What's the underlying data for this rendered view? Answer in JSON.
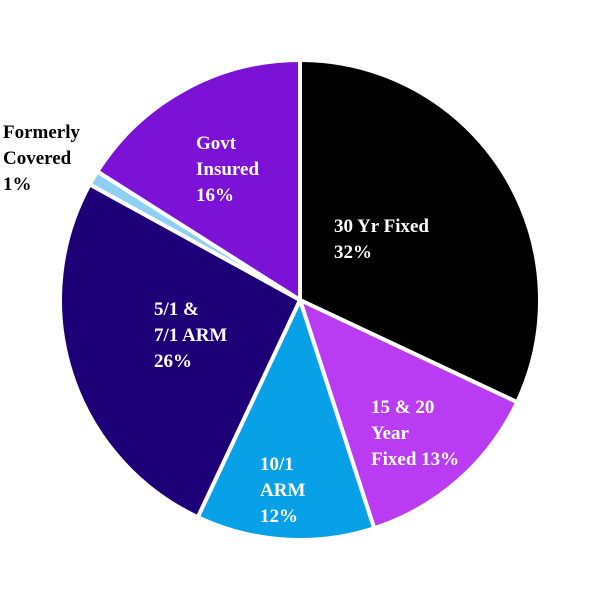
{
  "chart_data": {
    "type": "pie",
    "title": "",
    "slices": [
      {
        "id": "30yr-fixed",
        "label_lines": [
          "30 Yr Fixed",
          "32%"
        ],
        "value": 32,
        "color": "#000000",
        "text_color": "#ffffff"
      },
      {
        "id": "15-20-year-fixed",
        "label_lines": [
          "15 & 20",
          "Year",
          "Fixed 13%"
        ],
        "value": 13,
        "color": "#b93cf2",
        "text_color": "#ffffff"
      },
      {
        "id": "10-1-arm",
        "label_lines": [
          "10/1",
          "ARM",
          "12%"
        ],
        "value": 12,
        "color": "#08a0e6",
        "text_color": "#ffffff"
      },
      {
        "id": "5-1-7-1-arm",
        "label_lines": [
          "5/1 &",
          "7/1 ARM",
          "26%"
        ],
        "value": 26,
        "color": "#1d0078",
        "text_color": "#ffffff"
      },
      {
        "id": "formerly-covered",
        "label_lines": [
          "Formerly",
          "Covered",
          "1%"
        ],
        "value": 1,
        "color": "#8fd0f2",
        "text_color": "#000000"
      },
      {
        "id": "govt-insured",
        "label_lines": [
          "Govt",
          "Insured",
          "16%"
        ],
        "value": 16,
        "color": "#7b12d6",
        "text_color": "#ffffff"
      }
    ]
  }
}
